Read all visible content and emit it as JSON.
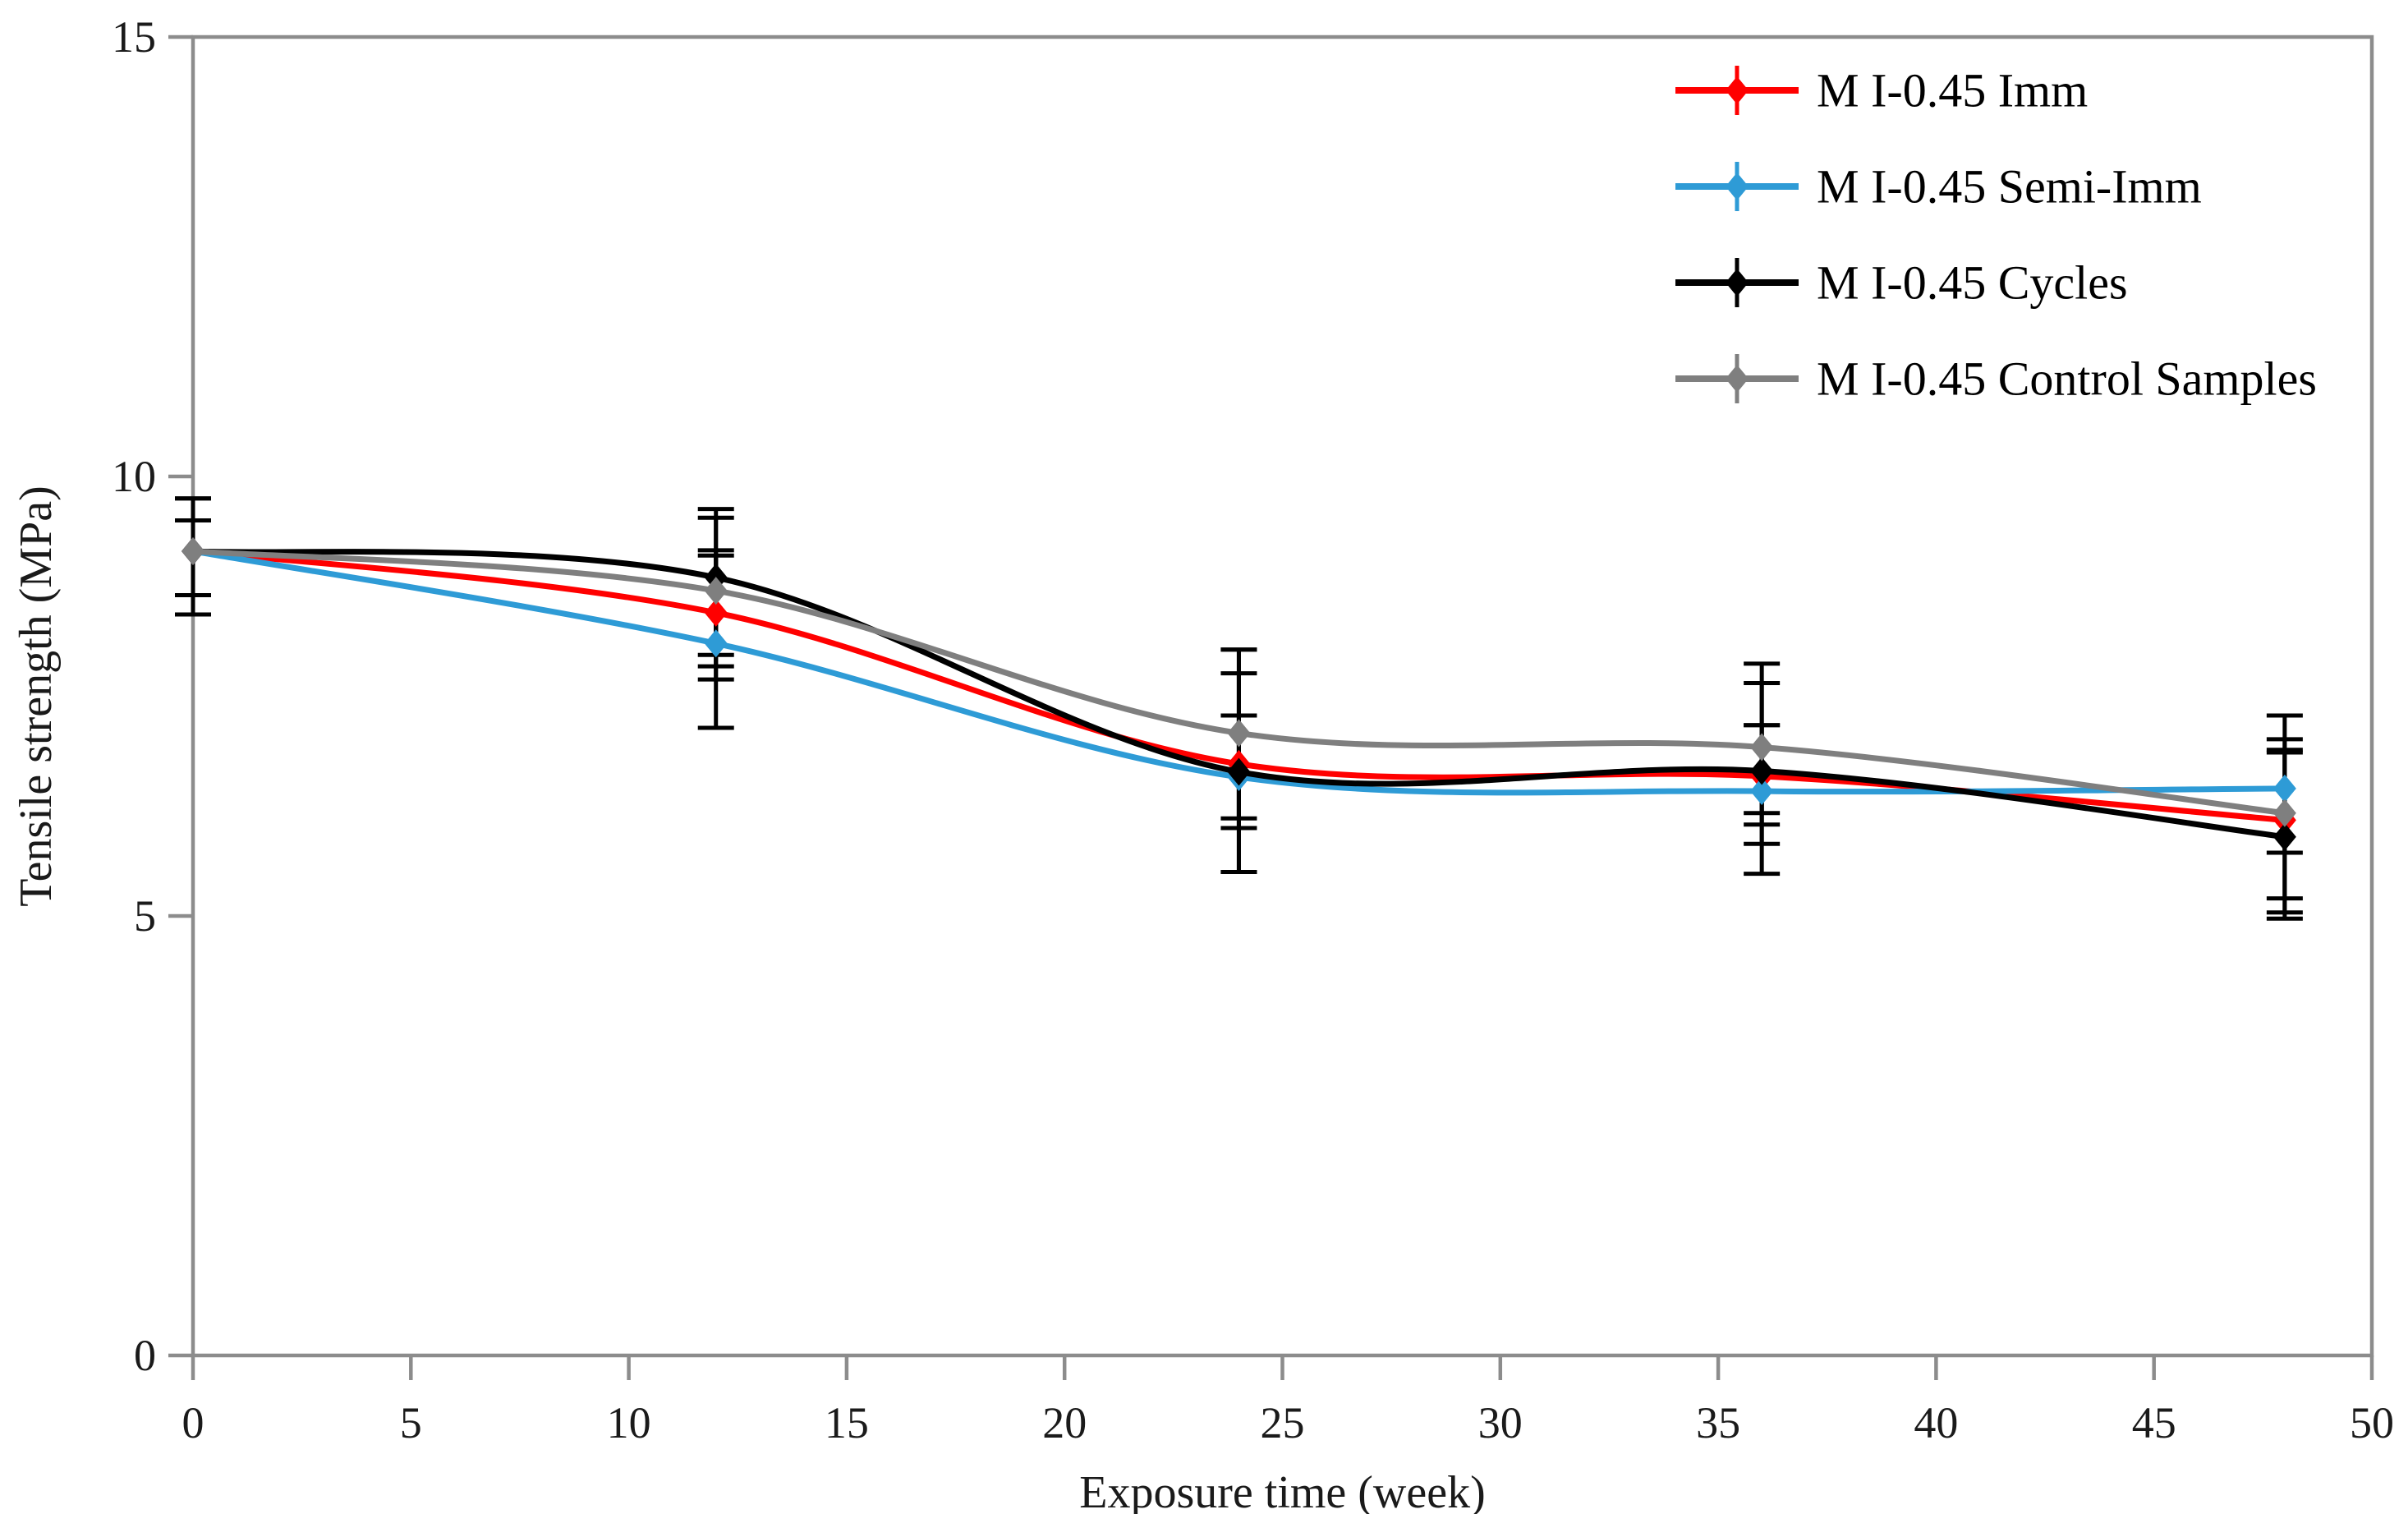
{
  "figure": {
    "background": "#ffffff"
  },
  "chart_data": {
    "type": "line",
    "title": "",
    "xlabel": "Exposure time  (week)",
    "ylabel": "Tensile strength (MPa)",
    "xlim": [
      0,
      50
    ],
    "ylim": [
      0,
      15
    ],
    "x_ticks": [
      0,
      5,
      10,
      15,
      20,
      25,
      30,
      35,
      40,
      45,
      50
    ],
    "x_tick_labels": [
      "0",
      "5",
      "10",
      "15",
      "20",
      "25",
      "30",
      "35",
      "40",
      "45",
      "50"
    ],
    "y_ticks": [
      0,
      5,
      10,
      15
    ],
    "y_tick_labels": [
      "0",
      "5",
      "10",
      "15"
    ],
    "grid": false,
    "legend_position": "top-right-inside",
    "marker": "diamond",
    "line_style": "smooth",
    "error_bar_color": "#000000",
    "axis_color": "#8c8c8c",
    "text_color": "#1a1a1a",
    "x": [
      0,
      12,
      24,
      36,
      48
    ],
    "series": [
      {
        "name": "M I-0.45 Imm",
        "color": "#ff0000",
        "values": [
          9.15,
          8.45,
          6.73,
          6.59,
          6.09
        ],
        "err_up": [
          0.35,
          0.71,
          1.03,
          0.58,
          0.8
        ],
        "err_down": [
          0.5,
          0.76,
          0.73,
          0.42,
          1.05
        ]
      },
      {
        "name": "M I-0.45 Semi-Imm",
        "color": "#2e9bd6",
        "values": [
          9.15,
          8.1,
          6.58,
          6.42,
          6.45
        ],
        "err_up": [
          0.6,
          1.0,
          0.7,
          0.75,
          0.83
        ],
        "err_down": [
          0.72,
          0.96,
          1.08,
          0.6,
          0.73
        ]
      },
      {
        "name": "M I-0.45 Cycles",
        "color": "#000000",
        "values": [
          9.15,
          8.85,
          6.64,
          6.65,
          5.9
        ],
        "err_up": [
          0.6,
          0.78,
          1.39,
          1.0,
          0.96
        ],
        "err_down": [
          0.5,
          0.88,
          1.14,
          1.17,
          0.93
        ]
      },
      {
        "name": "M I-0.45 Control Samples",
        "color": "#7f7f7f",
        "values": [
          9.15,
          8.7,
          7.08,
          6.92,
          6.17
        ],
        "err_up": [
          0.35,
          0.83,
          0.95,
          0.95,
          0.84
        ],
        "err_down": [
          0.72,
          0.86,
          0.97,
          0.88,
          0.97
        ]
      }
    ]
  }
}
